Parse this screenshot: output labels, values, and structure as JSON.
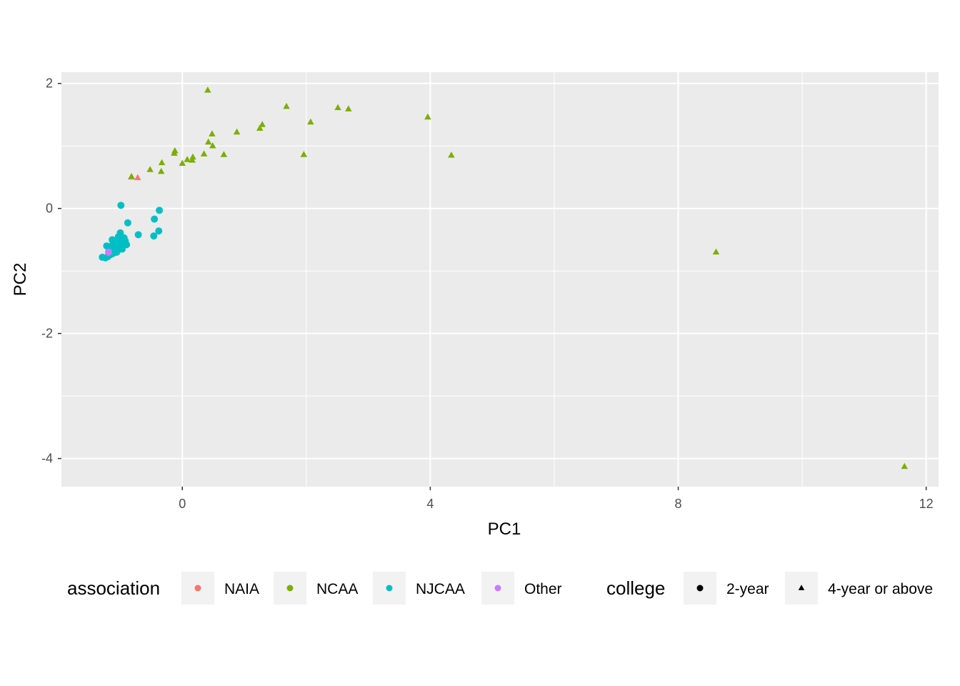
{
  "chart_data": {
    "type": "scatter",
    "xlabel": "PC1",
    "ylabel": "PC2",
    "xlim": [
      -1.95,
      12.2
    ],
    "ylim": [
      -4.45,
      2.18
    ],
    "x_ticks": [
      0,
      4,
      8,
      12
    ],
    "x_tick_labels": [
      "0",
      "4",
      "8",
      "12"
    ],
    "y_ticks": [
      2,
      0,
      -2,
      -4
    ],
    "y_tick_labels": [
      "2",
      "0",
      "-2",
      "-4"
    ],
    "grid": true,
    "legend_position": "bottom",
    "colors": {
      "panel": "#ebebeb",
      "grid": "#ffffff",
      "NAIA": "#F8766D",
      "NCAA": "#7CAE00",
      "NJCAA": "#00BFC4",
      "Other": "#C77CFF"
    },
    "legend": {
      "color_title": "association",
      "color_entries": [
        "NAIA",
        "NCAA",
        "NJCAA",
        "Other"
      ],
      "shape_title": "college",
      "shape_entries": [
        {
          "label": "2-year",
          "shape": "circle"
        },
        {
          "label": "4-year or above",
          "shape": "triangle"
        }
      ]
    },
    "series": [
      {
        "association": "NAIA",
        "shape": "triangle",
        "points": [
          [
            -0.72,
            0.49
          ],
          [
            -0.82,
            0.5
          ]
        ]
      },
      {
        "association": "NCAA",
        "shape": "triangle",
        "points": [
          [
            0.41,
            1.89
          ],
          [
            1.68,
            1.63
          ],
          [
            2.51,
            1.61
          ],
          [
            2.68,
            1.59
          ],
          [
            3.96,
            1.46
          ],
          [
            2.07,
            1.38
          ],
          [
            1.29,
            1.34
          ],
          [
            1.25,
            1.28
          ],
          [
            0.88,
            1.22
          ],
          [
            0.48,
            1.19
          ],
          [
            0.42,
            1.06
          ],
          [
            0.49,
            1.0
          ],
          [
            -0.12,
            0.92
          ],
          [
            -0.13,
            0.88
          ],
          [
            0.35,
            0.87
          ],
          [
            0.67,
            0.86
          ],
          [
            1.96,
            0.86
          ],
          [
            4.34,
            0.85
          ],
          [
            0.17,
            0.82
          ],
          [
            0.08,
            0.78
          ],
          [
            0.16,
            0.77
          ],
          [
            -0.33,
            0.73
          ],
          [
            0.0,
            0.72
          ],
          [
            -0.52,
            0.62
          ],
          [
            -0.34,
            0.59
          ],
          [
            -0.82,
            0.51
          ],
          [
            8.61,
            -0.7
          ],
          [
            11.65,
            -4.13
          ]
        ]
      },
      {
        "association": "NJCAA",
        "shape": "circle",
        "points": [
          [
            -0.99,
            0.05
          ],
          [
            -0.37,
            -0.03
          ],
          [
            -0.45,
            -0.17
          ],
          [
            -0.88,
            -0.23
          ],
          [
            -0.38,
            -0.36
          ],
          [
            -1.0,
            -0.39
          ],
          [
            -0.71,
            -0.42
          ],
          [
            -0.46,
            -0.44
          ],
          [
            -1.03,
            -0.45
          ],
          [
            -0.94,
            -0.47
          ],
          [
            -0.92,
            -0.52
          ],
          [
            -1.13,
            -0.5
          ],
          [
            -1.07,
            -0.53
          ],
          [
            -1.0,
            -0.55
          ],
          [
            -1.12,
            -0.57
          ],
          [
            -1.04,
            -0.59
          ],
          [
            -0.96,
            -0.6
          ],
          [
            -0.9,
            -0.58
          ],
          [
            -1.22,
            -0.6
          ],
          [
            -1.08,
            -0.62
          ],
          [
            -1.15,
            -0.64
          ],
          [
            -1.03,
            -0.66
          ],
          [
            -0.97,
            -0.65
          ],
          [
            -1.18,
            -0.68
          ],
          [
            -1.06,
            -0.7
          ],
          [
            -1.12,
            -0.72
          ],
          [
            -1.16,
            -0.74
          ],
          [
            -1.29,
            -0.78
          ],
          [
            -1.24,
            -0.79
          ],
          [
            -1.2,
            -0.77
          ],
          [
            -1.01,
            -0.62
          ],
          [
            -1.09,
            -0.58
          ]
        ]
      },
      {
        "association": "Other",
        "shape": "circle",
        "points": [
          [
            -1.19,
            -0.7
          ]
        ]
      }
    ]
  }
}
